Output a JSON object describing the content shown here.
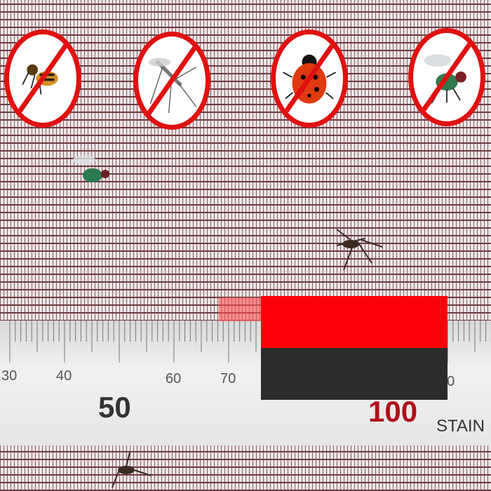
{
  "signs": [
    {
      "icon": "wasp-icon"
    },
    {
      "icon": "mosquito-icon"
    },
    {
      "icon": "ladybug-icon"
    },
    {
      "icon": "fly-icon"
    }
  ],
  "ruler": {
    "small_labels": [
      "30",
      "40",
      "60",
      "70",
      "10"
    ],
    "big_labels": [
      "50",
      "100"
    ],
    "brand": "STAIN"
  },
  "colors": {
    "prohibit": "#e01010",
    "mesh": "#6e3a40",
    "red_block": "#fb0007",
    "black_block": "#2b2b2b"
  }
}
